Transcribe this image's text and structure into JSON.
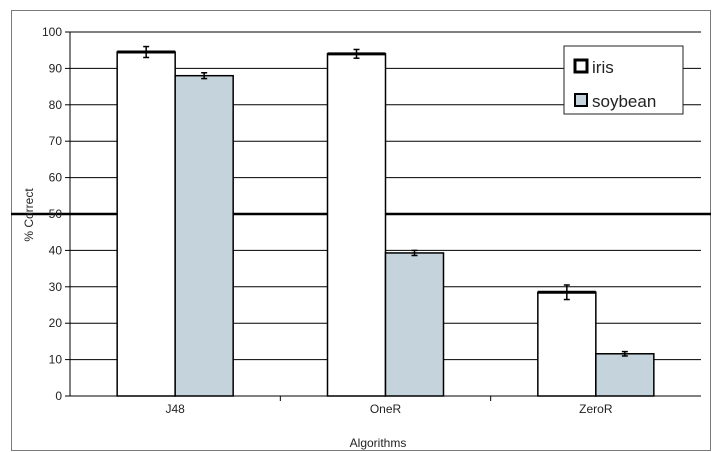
{
  "chart_data": {
    "type": "bar",
    "categories": [
      "J48",
      "OneR",
      "ZeroR"
    ],
    "series": [
      {
        "name": "iris",
        "color": "#ffffff",
        "values": [
          94.5,
          94.0,
          28.5
        ],
        "error": [
          1.5,
          1.2,
          2.0
        ]
      },
      {
        "name": "soybean",
        "color": "#c5d3dc",
        "values": [
          88.0,
          39.3,
          11.6
        ],
        "error": [
          0.8,
          0.7,
          0.6
        ]
      }
    ],
    "title": "",
    "xlabel": "Algorithms",
    "ylabel": "% Correct",
    "ylim": [
      0,
      100
    ],
    "yticks": [
      0,
      10,
      20,
      30,
      40,
      50,
      60,
      70,
      80,
      90,
      100
    ],
    "reference_line": 50,
    "grid": true,
    "legend": "top-right"
  }
}
